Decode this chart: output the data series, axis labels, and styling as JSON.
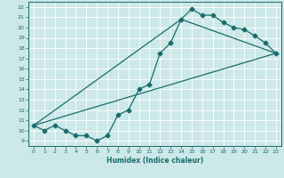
{
  "xlabel": "Humidex (Indice chaleur)",
  "bg_color": "#cce8e8",
  "line_color": "#1a6b6b",
  "grid_color": "#b0d0d0",
  "xlim": [
    -0.5,
    23.5
  ],
  "ylim": [
    8.5,
    22.5
  ],
  "xticks": [
    0,
    1,
    2,
    3,
    4,
    5,
    6,
    7,
    8,
    9,
    10,
    11,
    12,
    13,
    14,
    15,
    16,
    17,
    18,
    19,
    20,
    21,
    22,
    23
  ],
  "yticks": [
    9,
    10,
    11,
    12,
    13,
    14,
    15,
    16,
    17,
    18,
    19,
    20,
    21,
    22
  ],
  "line1_x": [
    0,
    1,
    2,
    3,
    4,
    5,
    6,
    7,
    8,
    9,
    10,
    11,
    12,
    13,
    14,
    15,
    16,
    17,
    18,
    19,
    20,
    21,
    22,
    23
  ],
  "line1_y": [
    10.5,
    10.0,
    10.5,
    10.0,
    9.5,
    9.5,
    9.0,
    9.5,
    11.5,
    12.0,
    14.0,
    14.5,
    17.5,
    18.5,
    20.8,
    21.8,
    21.2,
    21.2,
    20.5,
    20.0,
    19.8,
    19.2,
    18.5,
    17.5
  ],
  "line2_x": [
    0,
    23
  ],
  "line2_y": [
    10.5,
    17.5
  ],
  "line3_x": [
    0,
    14,
    23
  ],
  "line3_y": [
    10.5,
    20.8,
    17.5
  ]
}
